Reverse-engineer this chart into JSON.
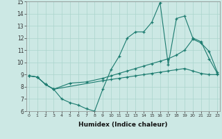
{
  "xlabel": "Humidex (Indice chaleur)",
  "xlim": [
    0,
    23
  ],
  "ylim": [
    6,
    15
  ],
  "xticks": [
    0,
    1,
    2,
    3,
    4,
    5,
    6,
    7,
    8,
    9,
    10,
    11,
    12,
    13,
    14,
    15,
    16,
    17,
    18,
    19,
    20,
    21,
    22,
    23
  ],
  "yticks": [
    6,
    7,
    8,
    9,
    10,
    11,
    12,
    13,
    14,
    15
  ],
  "bg_color": "#cce8e4",
  "grid_color": "#aad4cc",
  "line_color": "#1a7a6e",
  "line1_x": [
    0,
    1,
    2,
    3,
    4,
    5,
    6,
    7,
    8,
    9,
    10,
    11,
    12,
    13,
    14,
    15,
    16,
    17,
    18,
    19,
    20,
    21,
    22,
    23
  ],
  "line1_y": [
    8.9,
    8.8,
    8.2,
    7.8,
    7.0,
    6.7,
    6.5,
    6.2,
    6.0,
    7.8,
    9.4,
    10.5,
    12.0,
    12.5,
    12.5,
    13.3,
    14.9,
    9.8,
    13.6,
    13.8,
    12.0,
    11.7,
    10.3,
    9.1
  ],
  "line2_x": [
    0,
    1,
    2,
    3,
    5,
    7,
    9,
    10,
    11,
    12,
    13,
    14,
    15,
    16,
    17,
    18,
    19,
    20,
    21,
    22,
    23
  ],
  "line2_y": [
    8.9,
    8.8,
    8.2,
    7.8,
    8.3,
    8.4,
    8.7,
    8.9,
    9.1,
    9.3,
    9.5,
    9.7,
    9.9,
    10.1,
    10.3,
    10.6,
    11.0,
    11.9,
    11.6,
    10.9,
    9.2
  ],
  "line3_x": [
    0,
    1,
    2,
    3,
    9,
    10,
    11,
    12,
    13,
    14,
    15,
    16,
    17,
    18,
    19,
    20,
    21,
    22,
    23
  ],
  "line3_y": [
    8.9,
    8.8,
    8.2,
    7.8,
    8.5,
    8.6,
    8.7,
    8.8,
    8.9,
    9.0,
    9.1,
    9.2,
    9.3,
    9.4,
    9.5,
    9.3,
    9.1,
    9.0,
    9.0
  ]
}
